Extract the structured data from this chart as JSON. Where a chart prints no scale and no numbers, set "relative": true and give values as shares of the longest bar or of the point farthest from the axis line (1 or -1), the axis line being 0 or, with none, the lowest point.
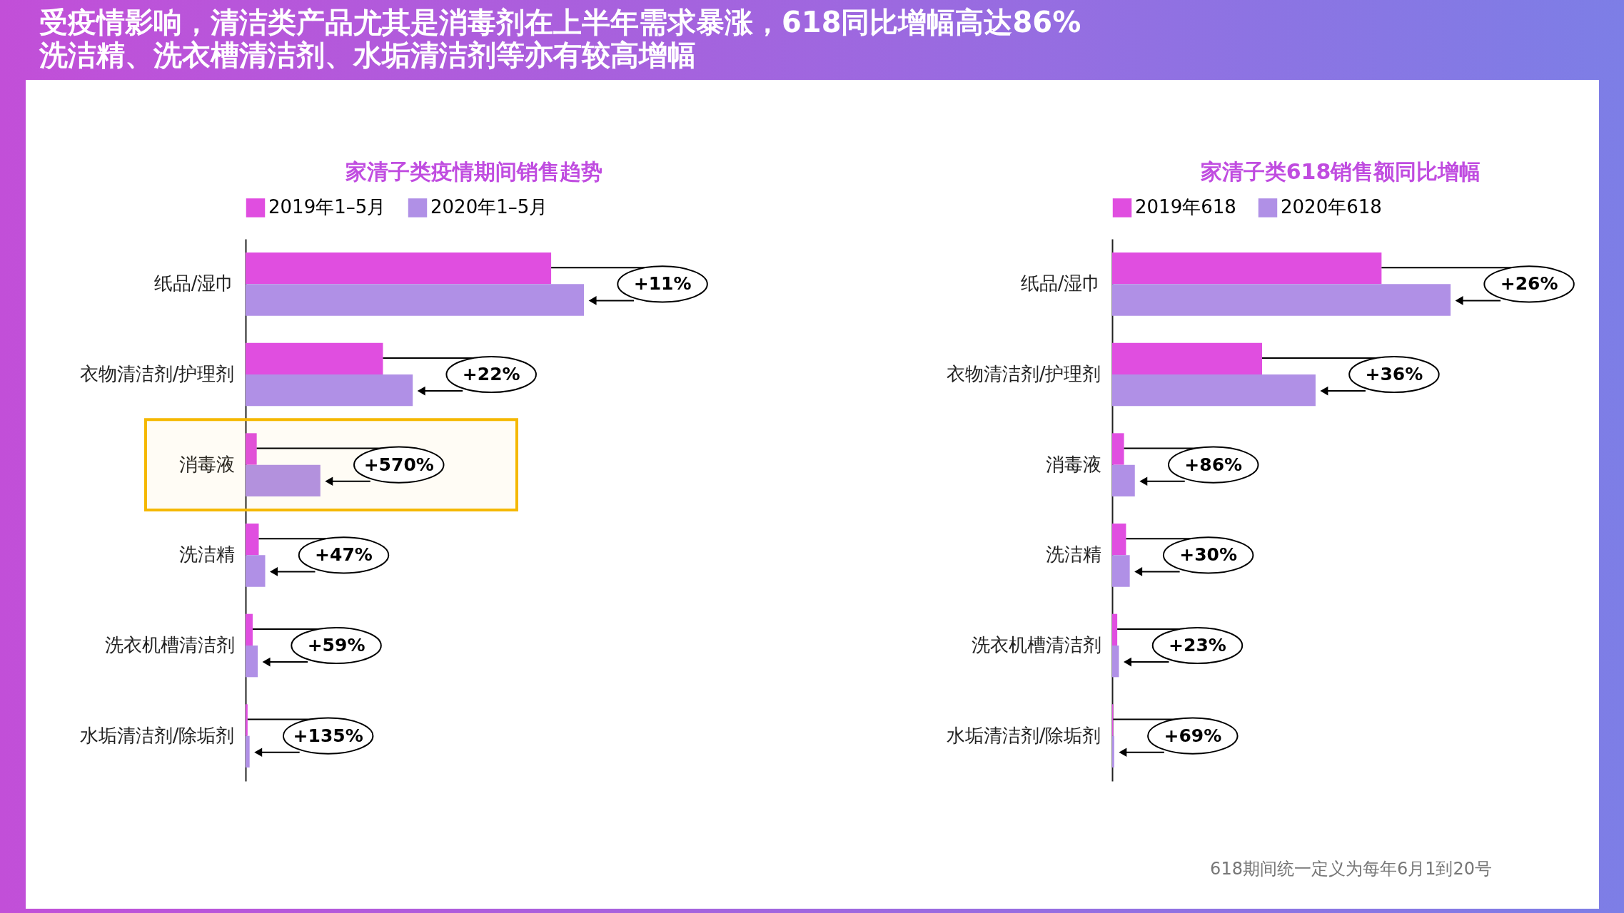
{
  "chart_data": [
    {
      "type": "other",
      "title": "受疫情影响，清洁类产品尤其是消毒剂在上半年需求暴涨，618同比增幅高达86%",
      "subtitle": "洗洁精、洗衣槽清洁剂、水垢清洁剂等亦有较高增幅",
      "annotations": [
        "618期间统一定义为每年6月1到20号"
      ]
    },
    {
      "type": "bar",
      "orientation": "horizontal",
      "relative": true,
      "title": "家清子类疫情期间销售趋势",
      "legend": "top",
      "categories": [
        "纸品/湿巾",
        "衣物清洁剂/护理剂",
        "消毒液",
        "洗洁精",
        "洗衣机槽清洁剂",
        "水垢清洁剂/除垢剂"
      ],
      "series": [
        {
          "name": "2019年1–5月",
          "color": "#e04ee0",
          "values": [
            0.903,
            0.406,
            0.033,
            0.039,
            0.021,
            0.006
          ]
        },
        {
          "name": "2020年1–5月",
          "color": "#b090e6",
          "values": [
            1,
            0.494,
            0.221,
            0.058,
            0.036,
            0.012
          ]
        }
      ],
      "annotations": [
        {
          "text": "+11%",
          "x": 1,
          "y": "纸品/湿巾"
        },
        {
          "text": "+22%",
          "x": 0.494,
          "y": "衣物清洁剂/护理剂"
        },
        {
          "text": "+570%",
          "x": 0.221,
          "y": "消毒液"
        },
        {
          "text": "+47%",
          "x": 0.058,
          "y": "洗洁精"
        },
        {
          "text": "+59%",
          "x": 0.036,
          "y": "洗衣机槽清洁剂"
        },
        {
          "text": "+135%",
          "x": 0.012,
          "y": "水垢清洁剂/除垢剂"
        }
      ],
      "bands": [
        {
          "axis": "y",
          "from": "消毒液",
          "to": "消毒液",
          "color": "#f5b800"
        }
      ]
    },
    {
      "type": "bar",
      "orientation": "horizontal",
      "relative": true,
      "title": "家清子类618销售额同比增幅",
      "legend": "top",
      "categories": [
        "纸品/湿巾",
        "衣物清洁剂/护理剂",
        "消毒液",
        "洗洁精",
        "洗衣机槽清洁剂",
        "水垢清洁剂/除垢剂"
      ],
      "series": [
        {
          "name": "2019年618",
          "color": "#e04ee0",
          "values": [
            0.796,
            0.443,
            0.035,
            0.041,
            0.015,
            0.003
          ]
        },
        {
          "name": "2020年618",
          "color": "#b090e6",
          "values": [
            1,
            0.601,
            0.067,
            0.052,
            0.02,
            0.006
          ]
        }
      ],
      "annotations": [
        {
          "text": "+26%",
          "x": 1,
          "y": "纸品/湿巾"
        },
        {
          "text": "+36%",
          "x": 0.601,
          "y": "衣物清洁剂/护理剂"
        },
        {
          "text": "+86%",
          "x": 0.067,
          "y": "消毒液"
        },
        {
          "text": "+30%",
          "x": 0.052,
          "y": "洗洁精"
        },
        {
          "text": "+23%",
          "x": 0.02,
          "y": "洗衣机槽清洁剂"
        },
        {
          "text": "+69%",
          "x": 0.006,
          "y": "水垢清洁剂/除垢剂"
        }
      ]
    }
  ]
}
